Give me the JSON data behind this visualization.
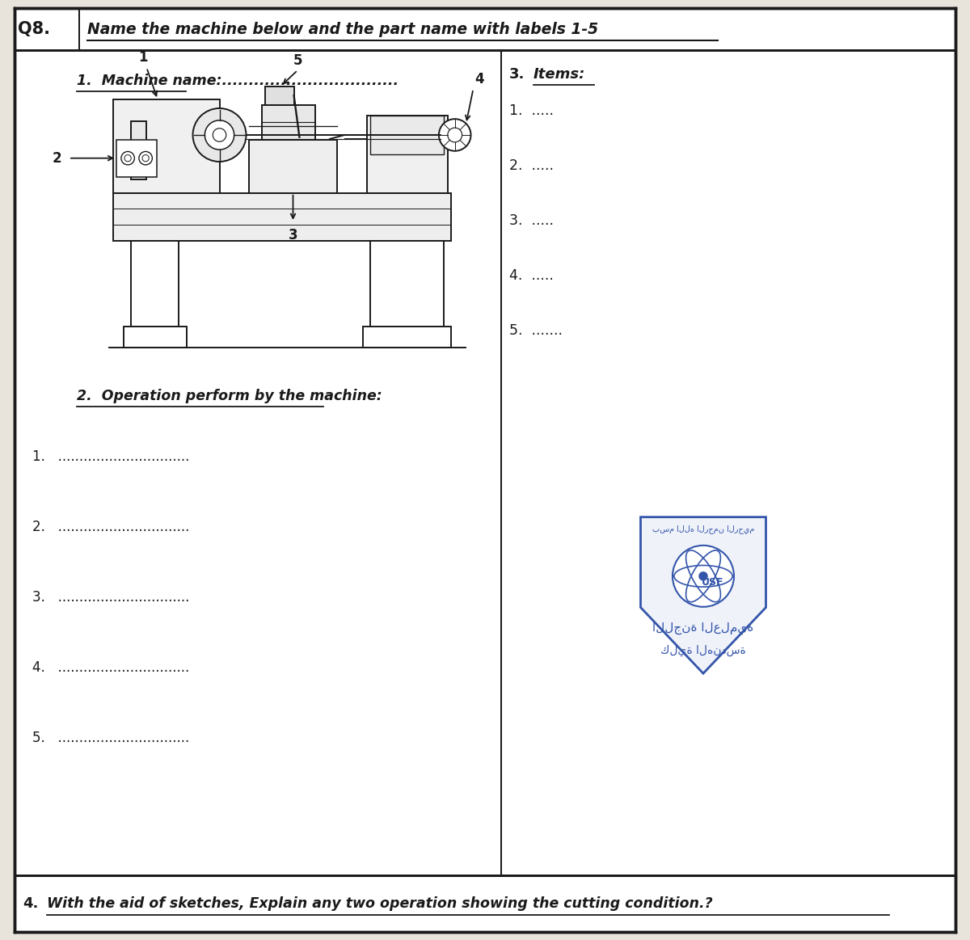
{
  "bg_color": "#e8e4dc",
  "white": "#ffffff",
  "border_color": "#1a1a1a",
  "title_q8": "Q8.",
  "title_text": "Name the machine below and the part name with labels 1-5",
  "section1_text": "1.  Machine name:.................................",
  "section2_text": "2.  Operation perform by the machine:",
  "section3_label": "3.",
  "section3_text": "Items:",
  "items_list": [
    "1.  .....",
    "2.  .....",
    "3.  .....",
    "4.  .....",
    "5.  ......."
  ],
  "ops_list": [
    "1.   ...............................",
    "2.   ...............................",
    "3.   ...............................",
    "4.   ...............................",
    "5.   ..............................."
  ],
  "section4_text": "With the aid of sketches, Explain any two operation showing the cutting condition.?",
  "col_div": 0.515
}
